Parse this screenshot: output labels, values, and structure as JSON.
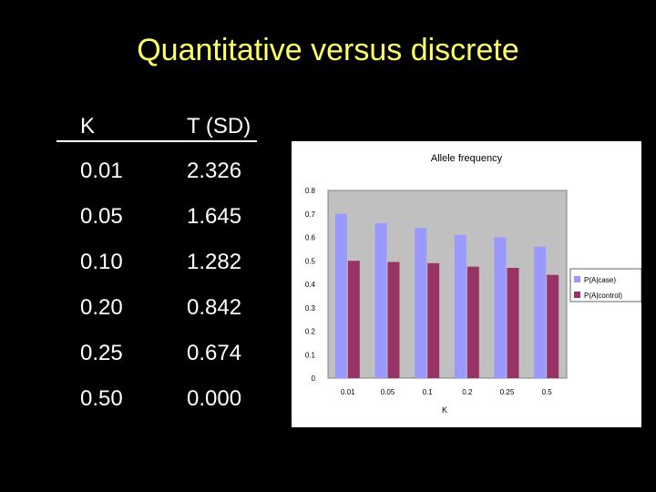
{
  "slide": {
    "title": "Quantitative versus discrete"
  },
  "table": {
    "headers": [
      "K",
      "T (SD)"
    ],
    "rows": [
      [
        "0.01",
        "2.326"
      ],
      [
        "0.05",
        "1.645"
      ],
      [
        "0.10",
        "1.282"
      ],
      [
        "0.20",
        "0.842"
      ],
      [
        "0.25",
        "0.674"
      ],
      [
        "0.50",
        "0.000"
      ]
    ]
  },
  "chart_data": {
    "type": "bar",
    "title": "Allele frequency",
    "xlabel": "K",
    "ylabel": "",
    "categories": [
      "0.01",
      "0.05",
      "0.1",
      "0.2",
      "0.25",
      "0.5"
    ],
    "series": [
      {
        "name": "P(A|case)",
        "values": [
          0.7,
          0.66,
          0.64,
          0.61,
          0.6,
          0.56
        ],
        "color": "#9999ff"
      },
      {
        "name": "P(A|control)",
        "values": [
          0.5,
          0.495,
          0.49,
          0.475,
          0.47,
          0.44
        ],
        "color": "#993366"
      }
    ],
    "ylim": [
      0,
      0.8
    ],
    "yticks": [
      "0",
      "0.1",
      "0.2",
      "0.3",
      "0.4",
      "0.5",
      "0.6",
      "0.7",
      "0.8"
    ],
    "plot_background": "#c0c0c0",
    "grid": false,
    "legend": "right"
  }
}
